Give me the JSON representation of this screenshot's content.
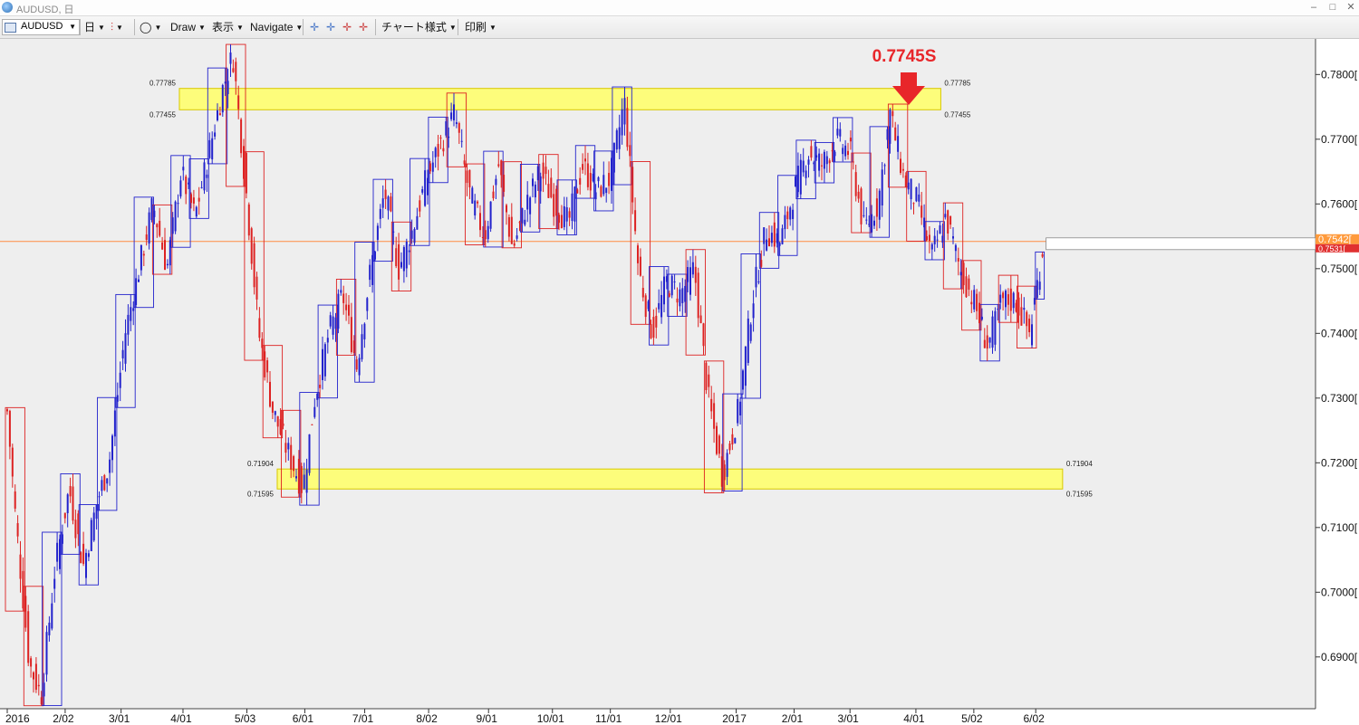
{
  "window": {
    "title": "AUDUSD, 日",
    "minimize": "‒",
    "maximize": "□",
    "close": "✕"
  },
  "toolbar": {
    "symbol": "AUDUSD",
    "period": "日",
    "draw": "Draw",
    "view": "表示",
    "navigate": "Navigate",
    "chart_style": "チャート様式",
    "print": "印刷"
  },
  "annotation": {
    "text": "0.7745S",
    "color": "#e8262a"
  },
  "colors": {
    "up_candle": "#2222cc",
    "down_candle": "#dd2222",
    "zone_fill": "#ffff66",
    "hline": "#ff8c42"
  },
  "chart_data": {
    "type": "candlestick",
    "symbol": "AUDUSD",
    "timeframe": "日",
    "ylim": [
      0.682,
      0.7855
    ],
    "y_ticks": [
      "0.7800[",
      "0.7700[",
      "0.7600[",
      "0.7500[",
      "0.7400[",
      "0.7300[",
      "0.7200[",
      "0.7100[",
      "0.7000[",
      "0.6900["
    ],
    "x_ticks": [
      "2016",
      "2/02",
      "3/01",
      "4/01",
      "5/03",
      "6/01",
      "7/01",
      "8/02",
      "9/01",
      "10/01",
      "11/01",
      "12/01",
      "2017",
      "2/01",
      "3/01",
      "4/01",
      "5/02",
      "6/02"
    ],
    "current_price": "0.7542[",
    "bid_price": "0.7531[",
    "zones": [
      {
        "top": 0.77785,
        "bottom": 0.77455,
        "top_label": "0.77785",
        "bottom_label": "0.77455",
        "x_start": "2016-04-01",
        "x_end": "2017-04-20"
      },
      {
        "top": 0.71904,
        "bottom": 0.71595,
        "top_label": "0.71904",
        "bottom_label": "0.71595",
        "x_start": "2016-05-20",
        "x_end": "2017-06-20"
      }
    ],
    "horizontal_line": 0.7542,
    "path": [
      [
        "2016-01-04",
        0.728
      ],
      [
        "2016-01-08",
        0.712
      ],
      [
        "2016-01-15",
        0.689
      ],
      [
        "2016-01-21",
        0.684
      ],
      [
        "2016-01-28",
        0.704
      ],
      [
        "2016-02-04",
        0.716
      ],
      [
        "2016-02-11",
        0.704
      ],
      [
        "2016-02-18",
        0.714
      ],
      [
        "2016-02-24",
        0.72
      ],
      [
        "2016-03-03",
        0.74
      ],
      [
        "2016-03-10",
        0.75
      ],
      [
        "2016-03-17",
        0.76
      ],
      [
        "2016-03-24",
        0.75
      ],
      [
        "2016-03-31",
        0.765
      ],
      [
        "2016-04-07",
        0.758
      ],
      [
        "2016-04-14",
        0.768
      ],
      [
        "2016-04-21",
        0.778
      ],
      [
        "2016-04-26",
        0.783
      ],
      [
        "2016-05-02",
        0.764
      ],
      [
        "2016-05-09",
        0.74
      ],
      [
        "2016-05-16",
        0.728
      ],
      [
        "2016-05-23",
        0.722
      ],
      [
        "2016-05-31",
        0.716
      ],
      [
        "2016-06-06",
        0.73
      ],
      [
        "2016-06-13",
        0.74
      ],
      [
        "2016-06-20",
        0.746
      ],
      [
        "2016-06-27",
        0.735
      ],
      [
        "2016-07-04",
        0.75
      ],
      [
        "2016-07-11",
        0.762
      ],
      [
        "2016-07-18",
        0.75
      ],
      [
        "2016-07-25",
        0.756
      ],
      [
        "2016-08-01",
        0.764
      ],
      [
        "2016-08-09",
        0.77
      ],
      [
        "2016-08-15",
        0.774
      ],
      [
        "2016-08-22",
        0.762
      ],
      [
        "2016-08-30",
        0.755
      ],
      [
        "2016-09-06",
        0.766
      ],
      [
        "2016-09-13",
        0.753
      ],
      [
        "2016-09-20",
        0.76
      ],
      [
        "2016-09-27",
        0.765
      ],
      [
        "2016-10-04",
        0.76
      ],
      [
        "2016-10-11",
        0.757
      ],
      [
        "2016-10-18",
        0.766
      ],
      [
        "2016-10-25",
        0.762
      ],
      [
        "2016-11-01",
        0.764
      ],
      [
        "2016-11-08",
        0.776
      ],
      [
        "2016-11-15",
        0.75
      ],
      [
        "2016-11-22",
        0.74
      ],
      [
        "2016-11-29",
        0.748
      ],
      [
        "2016-12-06",
        0.746
      ],
      [
        "2016-12-13",
        0.75
      ],
      [
        "2016-12-20",
        0.73
      ],
      [
        "2016-12-27",
        0.718
      ],
      [
        "2017-01-04",
        0.728
      ],
      [
        "2017-01-11",
        0.745
      ],
      [
        "2017-01-18",
        0.756
      ],
      [
        "2017-01-25",
        0.754
      ],
      [
        "2017-02-01",
        0.762
      ],
      [
        "2017-02-08",
        0.768
      ],
      [
        "2017-02-15",
        0.766
      ],
      [
        "2017-02-22",
        0.77
      ],
      [
        "2017-03-01",
        0.768
      ],
      [
        "2017-03-08",
        0.756
      ],
      [
        "2017-03-15",
        0.76
      ],
      [
        "2017-03-21",
        0.774
      ],
      [
        "2017-03-28",
        0.764
      ],
      [
        "2017-04-04",
        0.76
      ],
      [
        "2017-04-11",
        0.752
      ],
      [
        "2017-04-18",
        0.758
      ],
      [
        "2017-04-25",
        0.75
      ],
      [
        "2017-05-02",
        0.745
      ],
      [
        "2017-05-09",
        0.738
      ],
      [
        "2017-05-16",
        0.745
      ],
      [
        "2017-05-23",
        0.745
      ],
      [
        "2017-05-30",
        0.74
      ],
      [
        "2017-06-06",
        0.7542
      ]
    ]
  }
}
